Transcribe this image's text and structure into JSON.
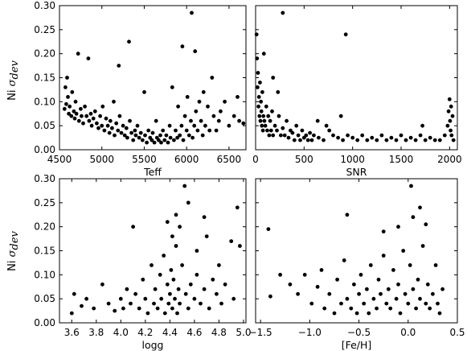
{
  "figure": {
    "ylabel_prefix": "Ni",
    "ylabel_sigma": "σ",
    "ylabel_sub": "dev"
  },
  "chart_data": [
    {
      "type": "scatter",
      "xlabel": "Teff",
      "ylabel": "Ni σ_dev",
      "xlim": [
        4500,
        6700
      ],
      "ylim": [
        0.0,
        0.3
      ],
      "xticks": [
        4500,
        5000,
        5500,
        6000,
        6500
      ],
      "xtick_labels": [
        "4500",
        "5000",
        "5500",
        "6000",
        "6500"
      ],
      "yticks": [
        0.0,
        0.05,
        0.1,
        0.15,
        0.2,
        0.25,
        0.3
      ],
      "ytick_labels": [
        "0.00",
        "0.05",
        "0.10",
        "0.15",
        "0.20",
        "0.25",
        "0.30"
      ],
      "grid": false,
      "marker_color": "#000000",
      "points": [
        [
          4560,
          0.085
        ],
        [
          4570,
          0.13
        ],
        [
          4580,
          0.095
        ],
        [
          4590,
          0.15
        ],
        [
          4600,
          0.11
        ],
        [
          4610,
          0.075
        ],
        [
          4620,
          0.09
        ],
        [
          4640,
          0.07
        ],
        [
          4650,
          0.12
        ],
        [
          4670,
          0.08
        ],
        [
          4680,
          0.065
        ],
        [
          4690,
          0.1
        ],
        [
          4700,
          0.075
        ],
        [
          4720,
          0.2
        ],
        [
          4730,
          0.06
        ],
        [
          4750,
          0.085
        ],
        [
          4760,
          0.07
        ],
        [
          4780,
          0.055
        ],
        [
          4800,
          0.09
        ],
        [
          4820,
          0.07
        ],
        [
          4840,
          0.19
        ],
        [
          4850,
          0.06
        ],
        [
          4870,
          0.075
        ],
        [
          4880,
          0.05
        ],
        [
          4900,
          0.065
        ],
        [
          4920,
          0.08
        ],
        [
          4940,
          0.055
        ],
        [
          4960,
          0.045
        ],
        [
          4980,
          0.07
        ],
        [
          5000,
          0.05
        ],
        [
          5010,
          0.09
        ],
        [
          5030,
          0.04
        ],
        [
          5050,
          0.065
        ],
        [
          5070,
          0.05
        ],
        [
          5090,
          0.035
        ],
        [
          5100,
          0.06
        ],
        [
          5120,
          0.045
        ],
        [
          5140,
          0.1
        ],
        [
          5150,
          0.03
        ],
        [
          5170,
          0.055
        ],
        [
          5190,
          0.04
        ],
        [
          5200,
          0.175
        ],
        [
          5210,
          0.07
        ],
        [
          5230,
          0.035
        ],
        [
          5250,
          0.05
        ],
        [
          5270,
          0.03
        ],
        [
          5290,
          0.045
        ],
        [
          5300,
          0.025
        ],
        [
          5320,
          0.225
        ],
        [
          5330,
          0.06
        ],
        [
          5350,
          0.035
        ],
        [
          5370,
          0.02
        ],
        [
          5390,
          0.04
        ],
        [
          5400,
          0.03
        ],
        [
          5420,
          0.05
        ],
        [
          5440,
          0.025
        ],
        [
          5460,
          0.035
        ],
        [
          5480,
          0.02
        ],
        [
          5500,
          0.12
        ],
        [
          5510,
          0.03
        ],
        [
          5530,
          0.015
        ],
        [
          5550,
          0.04
        ],
        [
          5570,
          0.025
        ],
        [
          5590,
          0.02
        ],
        [
          5600,
          0.035
        ],
        [
          5620,
          0.015
        ],
        [
          5640,
          0.06
        ],
        [
          5650,
          0.025
        ],
        [
          5670,
          0.02
        ],
        [
          5690,
          0.03
        ],
        [
          5700,
          0.015
        ],
        [
          5720,
          0.04
        ],
        [
          5740,
          0.02
        ],
        [
          5760,
          0.03
        ],
        [
          5780,
          0.015
        ],
        [
          5800,
          0.05
        ],
        [
          5810,
          0.025
        ],
        [
          5830,
          0.13
        ],
        [
          5850,
          0.02
        ],
        [
          5870,
          0.04
        ],
        [
          5890,
          0.025
        ],
        [
          5900,
          0.09
        ],
        [
          5920,
          0.03
        ],
        [
          5940,
          0.05
        ],
        [
          5950,
          0.215
        ],
        [
          5960,
          0.02
        ],
        [
          5980,
          0.07
        ],
        [
          6000,
          0.04
        ],
        [
          6010,
          0.11
        ],
        [
          6030,
          0.03
        ],
        [
          6050,
          0.06
        ],
        [
          6060,
          0.285
        ],
        [
          6070,
          0.025
        ],
        [
          6090,
          0.05
        ],
        [
          6100,
          0.205
        ],
        [
          6110,
          0.08
        ],
        [
          6130,
          0.04
        ],
        [
          6150,
          0.1
        ],
        [
          6170,
          0.06
        ],
        [
          6190,
          0.03
        ],
        [
          6200,
          0.12
        ],
        [
          6220,
          0.05
        ],
        [
          6250,
          0.09
        ],
        [
          6270,
          0.04
        ],
        [
          6300,
          0.15
        ],
        [
          6320,
          0.07
        ],
        [
          6350,
          0.04
        ],
        [
          6380,
          0.06
        ],
        [
          6400,
          0.08
        ],
        [
          6450,
          0.1
        ],
        [
          6500,
          0.05
        ],
        [
          6560,
          0.07
        ],
        [
          6600,
          0.11
        ],
        [
          6620,
          0.06
        ],
        [
          6670,
          0.055
        ]
      ]
    },
    {
      "type": "scatter",
      "xlabel": "SNR",
      "ylabel": "",
      "xlim": [
        0,
        2080
      ],
      "ylim": [
        0.0,
        0.3
      ],
      "xticks": [
        0,
        500,
        1000,
        1500,
        2000
      ],
      "xtick_labels": [
        "0",
        "500",
        "1000",
        "1500",
        "2000"
      ],
      "grid": false,
      "marker_color": "#000000",
      "points": [
        [
          10,
          0.24
        ],
        [
          15,
          0.19
        ],
        [
          20,
          0.13
        ],
        [
          25,
          0.16
        ],
        [
          30,
          0.09
        ],
        [
          35,
          0.11
        ],
        [
          40,
          0.07
        ],
        [
          45,
          0.14
        ],
        [
          50,
          0.06
        ],
        [
          55,
          0.1
        ],
        [
          60,
          0.08
        ],
        [
          65,
          0.05
        ],
        [
          70,
          0.12
        ],
        [
          75,
          0.04
        ],
        [
          80,
          0.07
        ],
        [
          85,
          0.2
        ],
        [
          90,
          0.06
        ],
        [
          100,
          0.05
        ],
        [
          110,
          0.09
        ],
        [
          120,
          0.04
        ],
        [
          130,
          0.07
        ],
        [
          140,
          0.03
        ],
        [
          150,
          0.06
        ],
        [
          160,
          0.04
        ],
        [
          170,
          0.08
        ],
        [
          180,
          0.03
        ],
        [
          200,
          0.05
        ],
        [
          220,
          0.04
        ],
        [
          240,
          0.07
        ],
        [
          260,
          0.03
        ],
        [
          280,
          0.045
        ],
        [
          300,
          0.03
        ],
        [
          320,
          0.06
        ],
        [
          340,
          0.025
        ],
        [
          360,
          0.04
        ],
        [
          380,
          0.035
        ],
        [
          400,
          0.02
        ],
        [
          420,
          0.05
        ],
        [
          440,
          0.03
        ],
        [
          460,
          0.02
        ],
        [
          480,
          0.04
        ],
        [
          500,
          0.025
        ],
        [
          520,
          0.03
        ],
        [
          540,
          0.02
        ],
        [
          560,
          0.035
        ],
        [
          580,
          0.02
        ],
        [
          600,
          0.03
        ],
        [
          650,
          0.025
        ],
        [
          700,
          0.02
        ],
        [
          730,
          0.05
        ],
        [
          760,
          0.04
        ],
        [
          800,
          0.03
        ],
        [
          850,
          0.025
        ],
        [
          900,
          0.02
        ],
        [
          950,
          0.03
        ],
        [
          1000,
          0.025
        ],
        [
          1050,
          0.02
        ],
        [
          1100,
          0.03
        ],
        [
          1150,
          0.02
        ],
        [
          1200,
          0.025
        ],
        [
          1250,
          0.02
        ],
        [
          1300,
          0.03
        ],
        [
          1350,
          0.02
        ],
        [
          1400,
          0.025
        ],
        [
          1450,
          0.02
        ],
        [
          1500,
          0.03
        ],
        [
          1550,
          0.02
        ],
        [
          1600,
          0.025
        ],
        [
          1650,
          0.02
        ],
        [
          1700,
          0.03
        ],
        [
          1750,
          0.02
        ],
        [
          1800,
          0.025
        ],
        [
          1850,
          0.02
        ],
        [
          1900,
          0.02
        ],
        [
          1950,
          0.03
        ],
        [
          1980,
          0.05
        ],
        [
          1990,
          0.08
        ],
        [
          2000,
          0.105
        ],
        [
          2005,
          0.06
        ],
        [
          2010,
          0.04
        ],
        [
          2015,
          0.09
        ],
        [
          2020,
          0.03
        ],
        [
          2030,
          0.07
        ],
        [
          2040,
          0.02
        ],
        [
          280,
          0.285
        ],
        [
          930,
          0.24
        ],
        [
          180,
          0.15
        ],
        [
          230,
          0.12
        ],
        [
          880,
          0.07
        ],
        [
          1720,
          0.05
        ],
        [
          640,
          0.06
        ]
      ]
    },
    {
      "type": "scatter",
      "xlabel": "logg",
      "ylabel": "Ni σ_dev",
      "xlim": [
        3.5,
        5.02
      ],
      "ylim": [
        0.0,
        0.3
      ],
      "xticks": [
        3.6,
        3.8,
        4.0,
        4.2,
        4.4,
        4.6,
        4.8,
        5.0
      ],
      "xtick_labels": [
        "3.6",
        "3.8",
        "4.0",
        "4.2",
        "4.4",
        "4.6",
        "4.8",
        "5.0"
      ],
      "yticks": [
        0.0,
        0.05,
        0.1,
        0.15,
        0.2,
        0.25,
        0.3
      ],
      "ytick_labels": [
        "0.00",
        "0.05",
        "0.10",
        "0.15",
        "0.20",
        "0.25",
        "0.30"
      ],
      "grid": false,
      "marker_color": "#000000",
      "points": [
        [
          3.6,
          0.02
        ],
        [
          3.62,
          0.06
        ],
        [
          3.68,
          0.035
        ],
        [
          3.72,
          0.05
        ],
        [
          3.78,
          0.03
        ],
        [
          3.85,
          0.08
        ],
        [
          3.9,
          0.04
        ],
        [
          3.95,
          0.025
        ],
        [
          4.0,
          0.05
        ],
        [
          4.02,
          0.03
        ],
        [
          4.05,
          0.07
        ],
        [
          4.08,
          0.04
        ],
        [
          4.1,
          0.2
        ],
        [
          4.12,
          0.06
        ],
        [
          4.15,
          0.03
        ],
        [
          4.18,
          0.09
        ],
        [
          4.2,
          0.05
        ],
        [
          4.22,
          0.02
        ],
        [
          4.25,
          0.12
        ],
        [
          4.27,
          0.04
        ],
        [
          4.28,
          0.07
        ],
        [
          4.3,
          0.03
        ],
        [
          4.32,
          0.1
        ],
        [
          4.33,
          0.05
        ],
        [
          4.35,
          0.14
        ],
        [
          4.36,
          0.02
        ],
        [
          4.38,
          0.08
        ],
        [
          4.39,
          0.04
        ],
        [
          4.4,
          0.06
        ],
        [
          4.41,
          0.11
        ],
        [
          4.42,
          0.03
        ],
        [
          4.43,
          0.09
        ],
        [
          4.44,
          0.05
        ],
        [
          4.45,
          0.16
        ],
        [
          4.46,
          0.02
        ],
        [
          4.47,
          0.07
        ],
        [
          4.48,
          0.04
        ],
        [
          4.5,
          0.12
        ],
        [
          4.52,
          0.285
        ],
        [
          4.53,
          0.06
        ],
        [
          4.55,
          0.03
        ],
        [
          4.57,
          0.08
        ],
        [
          4.6,
          0.05
        ],
        [
          4.62,
          0.1
        ],
        [
          4.65,
          0.04
        ],
        [
          4.68,
          0.07
        ],
        [
          4.7,
          0.18
        ],
        [
          4.72,
          0.03
        ],
        [
          4.75,
          0.09
        ],
        [
          4.78,
          0.06
        ],
        [
          4.8,
          0.12
        ],
        [
          4.82,
          0.04
        ],
        [
          4.85,
          0.08
        ],
        [
          4.9,
          0.17
        ],
        [
          4.92,
          0.05
        ],
        [
          4.95,
          0.24
        ],
        [
          4.97,
          0.16
        ],
        [
          4.45,
          0.225
        ],
        [
          4.48,
          0.2
        ],
        [
          4.55,
          0.25
        ],
        [
          4.38,
          0.21
        ],
        [
          4.42,
          0.18
        ],
        [
          4.62,
          0.15
        ],
        [
          4.68,
          0.22
        ]
      ]
    },
    {
      "type": "scatter",
      "xlabel": "[Fe/H]",
      "ylabel": "",
      "xlim": [
        -1.55,
        0.5
      ],
      "ylim": [
        0.0,
        0.3
      ],
      "xticks": [
        -1.5,
        -1.0,
        -0.5,
        0.0,
        0.5
      ],
      "xtick_labels": [
        "−1.5",
        "−1.0",
        "−0.5",
        "0.0",
        "0.5"
      ],
      "grid": false,
      "marker_color": "#000000",
      "points": [
        [
          -1.42,
          0.195
        ],
        [
          -1.4,
          0.055
        ],
        [
          -1.3,
          0.1
        ],
        [
          -1.2,
          0.08
        ],
        [
          -1.12,
          0.06
        ],
        [
          -1.05,
          0.1
        ],
        [
          -0.98,
          0.04
        ],
        [
          -0.92,
          0.075
        ],
        [
          -0.88,
          0.11
        ],
        [
          -0.85,
          0.03
        ],
        [
          -0.8,
          0.06
        ],
        [
          -0.75,
          0.02
        ],
        [
          -0.72,
          0.09
        ],
        [
          -0.68,
          0.04
        ],
        [
          -0.65,
          0.13
        ],
        [
          -0.62,
          0.05
        ],
        [
          -0.58,
          0.03
        ],
        [
          -0.55,
          0.08
        ],
        [
          -0.52,
          0.02
        ],
        [
          -0.5,
          0.06
        ],
        [
          -0.48,
          0.1
        ],
        [
          -0.45,
          0.04
        ],
        [
          -0.42,
          0.07
        ],
        [
          -0.4,
          0.02
        ],
        [
          -0.38,
          0.12
        ],
        [
          -0.35,
          0.05
        ],
        [
          -0.32,
          0.03
        ],
        [
          -0.3,
          0.09
        ],
        [
          -0.28,
          0.06
        ],
        [
          -0.25,
          0.14
        ],
        [
          -0.22,
          0.04
        ],
        [
          -0.2,
          0.07
        ],
        [
          -0.18,
          0.03
        ],
        [
          -0.15,
          0.11
        ],
        [
          -0.12,
          0.05
        ],
        [
          -0.1,
          0.08
        ],
        [
          -0.08,
          0.02
        ],
        [
          -0.05,
          0.15
        ],
        [
          -0.03,
          0.06
        ],
        [
          0.0,
          0.04
        ],
        [
          0.02,
          0.12
        ],
        [
          0.03,
          0.285
        ],
        [
          0.05,
          0.07
        ],
        [
          0.08,
          0.03
        ],
        [
          0.1,
          0.09
        ],
        [
          0.12,
          0.05
        ],
        [
          0.15,
          0.16
        ],
        [
          0.18,
          0.04
        ],
        [
          0.2,
          0.08
        ],
        [
          0.22,
          0.03
        ],
        [
          0.25,
          0.06
        ],
        [
          0.28,
          0.12
        ],
        [
          0.3,
          0.04
        ],
        [
          0.32,
          0.02
        ],
        [
          0.35,
          0.07
        ],
        [
          -0.62,
          0.225
        ],
        [
          -0.1,
          0.2
        ],
        [
          0.12,
          0.24
        ],
        [
          0.18,
          0.205
        ],
        [
          -0.25,
          0.19
        ],
        [
          0.05,
          0.22
        ]
      ]
    }
  ]
}
